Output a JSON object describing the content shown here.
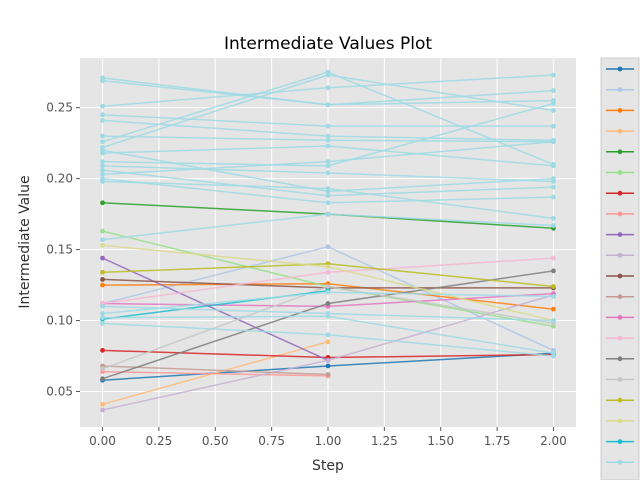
{
  "chart_data": {
    "type": "line",
    "title": "Intermediate Values Plot",
    "xlabel": "Step",
    "ylabel": "Intermediate Value",
    "xlim": [
      -0.1,
      2.1
    ],
    "ylim": [
      0.025,
      0.285
    ],
    "xticks": [
      0,
      0.25,
      0.5,
      0.75,
      1,
      1.25,
      1.5,
      1.75,
      2
    ],
    "xtick_labels": [
      "0.00",
      "0.25",
      "0.50",
      "0.75",
      "1.00",
      "1.25",
      "1.50",
      "1.75",
      "2.00"
    ],
    "yticks": [
      0.05,
      0.1,
      0.15,
      0.2,
      0.25
    ],
    "ytick_labels": [
      "0.05",
      "0.10",
      "0.15",
      "0.20",
      "0.25"
    ],
    "grid": true,
    "legend": "right, entries unlabeled",
    "series": [
      {
        "color": "#1f77b4",
        "x": [
          0,
          1,
          2
        ],
        "values": [
          0.058,
          0.068,
          0.077
        ]
      },
      {
        "color": "#aec7e8",
        "x": [
          0,
          1,
          2
        ],
        "values": [
          0.112,
          0.152,
          0.079
        ]
      },
      {
        "color": "#ff7f0e",
        "x": [
          0,
          1,
          2
        ],
        "values": [
          0.125,
          0.126,
          0.108
        ]
      },
      {
        "color": "#ffbb78",
        "x": [
          0,
          1
        ],
        "values": [
          0.041,
          0.085
        ]
      },
      {
        "color": "#2ca02c",
        "x": [
          0,
          1,
          2
        ],
        "values": [
          0.183,
          0.175,
          0.165
        ]
      },
      {
        "color": "#98df8a",
        "x": [
          0,
          1,
          2
        ],
        "values": [
          0.163,
          0.124,
          0.096
        ]
      },
      {
        "color": "#d62728",
        "x": [
          0,
          1,
          2
        ],
        "values": [
          0.079,
          0.074,
          0.076
        ]
      },
      {
        "color": "#ff9896",
        "x": [
          0,
          1
        ],
        "values": [
          0.064,
          0.061
        ]
      },
      {
        "color": "#9467bd",
        "x": [
          0,
          1
        ],
        "values": [
          0.144,
          0.072
        ]
      },
      {
        "color": "#c5b0d5",
        "x": [
          0,
          1,
          2
        ],
        "values": [
          0.037,
          0.072,
          0.118
        ]
      },
      {
        "color": "#8c564b",
        "x": [
          0,
          1,
          2
        ],
        "values": [
          0.129,
          0.123,
          0.123
        ]
      },
      {
        "color": "#c49c94",
        "x": [
          0,
          1
        ],
        "values": [
          0.068,
          0.062
        ]
      },
      {
        "color": "#e377c2",
        "x": [
          0,
          1,
          2
        ],
        "values": [
          0.112,
          0.11,
          0.119
        ]
      },
      {
        "color": "#f7b6d2",
        "x": [
          0,
          1,
          2
        ],
        "values": [
          0.112,
          0.134,
          0.144
        ]
      },
      {
        "color": "#7f7f7f",
        "x": [
          0,
          1,
          2
        ],
        "values": [
          0.059,
          0.112,
          0.135
        ]
      },
      {
        "color": "#c7c7c7",
        "x": [
          0,
          1,
          2
        ],
        "values": [
          0.066,
          0.124,
          0.098
        ]
      },
      {
        "color": "#bcbd22",
        "x": [
          0,
          1,
          2
        ],
        "values": [
          0.134,
          0.14,
          0.124
        ]
      },
      {
        "color": "#dbdb8d",
        "x": [
          0,
          1,
          2
        ],
        "values": [
          0.153,
          0.138,
          0.1
        ]
      },
      {
        "color": "#17becf",
        "x": [
          0,
          1
        ],
        "values": [
          0.101,
          0.121
        ]
      },
      {
        "color": "#9edae5",
        "x": [
          0,
          1,
          2
        ],
        "values": [
          0.271,
          0.252,
          0.262
        ]
      },
      {
        "color": "#9edae5",
        "x": [
          0,
          1,
          2
        ],
        "values": [
          0.269,
          0.252,
          0.255
        ]
      },
      {
        "color": "#9edae5",
        "x": [
          0,
          1,
          2
        ],
        "values": [
          0.251,
          0.264,
          0.273
        ]
      },
      {
        "color": "#9edae5",
        "x": [
          0,
          1,
          2
        ],
        "values": [
          0.245,
          0.237,
          0.237
        ]
      },
      {
        "color": "#9edae5",
        "x": [
          0,
          1,
          2
        ],
        "values": [
          0.241,
          0.23,
          0.227
        ]
      },
      {
        "color": "#9edae5",
        "x": [
          0,
          1,
          2
        ],
        "values": [
          0.23,
          0.227,
          0.226
        ]
      },
      {
        "color": "#9edae5",
        "x": [
          0,
          1,
          2
        ],
        "values": [
          0.226,
          0.275,
          0.21
        ]
      },
      {
        "color": "#9edae5",
        "x": [
          0,
          1,
          2
        ],
        "values": [
          0.222,
          0.273,
          0.248
        ]
      },
      {
        "color": "#9edae5",
        "x": [
          0,
          1,
          2
        ],
        "values": [
          0.22,
          0.191,
          0.2
        ]
      },
      {
        "color": "#9edae5",
        "x": [
          0,
          1,
          2
        ],
        "values": [
          0.218,
          0.223,
          0.209
        ]
      },
      {
        "color": "#9edae5",
        "x": [
          0,
          1,
          2
        ],
        "values": [
          0.212,
          0.209,
          0.253
        ]
      },
      {
        "color": "#9edae5",
        "x": [
          0,
          1,
          2
        ],
        "values": [
          0.209,
          0.204,
          0.198
        ]
      },
      {
        "color": "#9edae5",
        "x": [
          0,
          1,
          2
        ],
        "values": [
          0.206,
          0.188,
          0.194
        ]
      },
      {
        "color": "#9edae5",
        "x": [
          0,
          1,
          2
        ],
        "values": [
          0.203,
          0.212,
          0.226
        ]
      },
      {
        "color": "#9edae5",
        "x": [
          0,
          1,
          2
        ],
        "values": [
          0.2,
          0.183,
          0.187
        ]
      },
      {
        "color": "#9edae5",
        "x": [
          0,
          1,
          2
        ],
        "values": [
          0.198,
          0.193,
          0.172
        ]
      },
      {
        "color": "#9edae5",
        "x": [
          0,
          1,
          2
        ],
        "values": [
          0.157,
          0.175,
          0.167
        ]
      },
      {
        "color": "#9edae5",
        "x": [
          0,
          1,
          2
        ],
        "values": [
          0.11,
          0.105,
          0.1
        ]
      },
      {
        "color": "#9edae5",
        "x": [
          0,
          1,
          2
        ],
        "values": [
          0.105,
          0.12,
          0.117
        ]
      },
      {
        "color": "#9edae5",
        "x": [
          0,
          1,
          2
        ],
        "values": [
          0.102,
          0.103,
          0.077
        ]
      },
      {
        "color": "#9edae5",
        "x": [
          0,
          1,
          2
        ],
        "values": [
          0.098,
          0.09,
          0.075
        ]
      }
    ],
    "legend_swatches": [
      "#1f77b4",
      "#aec7e8",
      "#ff7f0e",
      "#ffbb78",
      "#2ca02c",
      "#98df8a",
      "#d62728",
      "#ff9896",
      "#9467bd",
      "#c5b0d5",
      "#8c564b",
      "#c49c94",
      "#e377c2",
      "#f7b6d2",
      "#7f7f7f",
      "#c7c7c7",
      "#bcbd22",
      "#dbdb8d",
      "#17becf",
      "#9edae5"
    ]
  }
}
